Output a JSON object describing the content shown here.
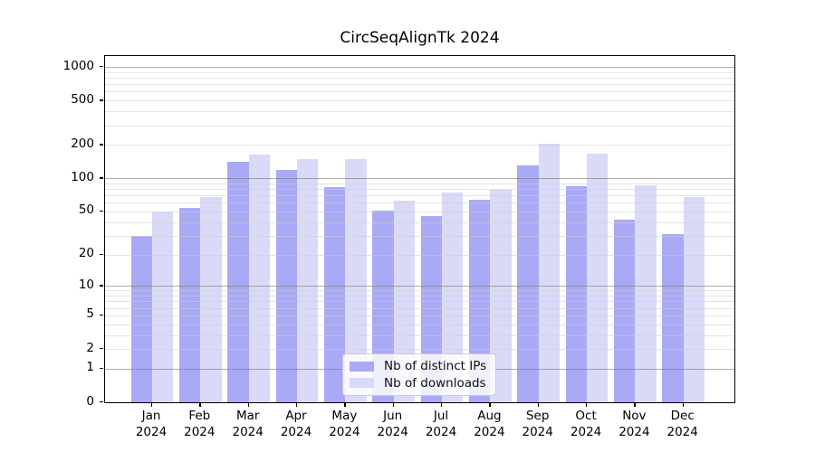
{
  "chart_data": {
    "type": "bar",
    "title": "CircSeqAlignTk 2024",
    "categories": [
      "Jan",
      "Feb",
      "Mar",
      "Apr",
      "May",
      "Jun",
      "Jul",
      "Aug",
      "Sep",
      "Oct",
      "Nov",
      "Dec"
    ],
    "category_year": "2024",
    "series": [
      {
        "name": "Nb of distinct IPs",
        "color": "#a9a9f5",
        "values": [
          30,
          54,
          142,
          118,
          83,
          51,
          45,
          64,
          130,
          84,
          42,
          31
        ]
      },
      {
        "name": "Nb of downloads",
        "color": "#d9d9f8",
        "values": [
          50,
          67,
          165,
          150,
          148,
          63,
          74,
          79,
          205,
          168,
          87,
          68
        ]
      }
    ],
    "yscale": "log1p",
    "yticks": [
      0,
      1,
      2,
      5,
      10,
      20,
      50,
      100,
      200,
      500,
      1000
    ],
    "ylim": [
      0,
      1275
    ],
    "grid": true,
    "legend_position": "lower center"
  }
}
